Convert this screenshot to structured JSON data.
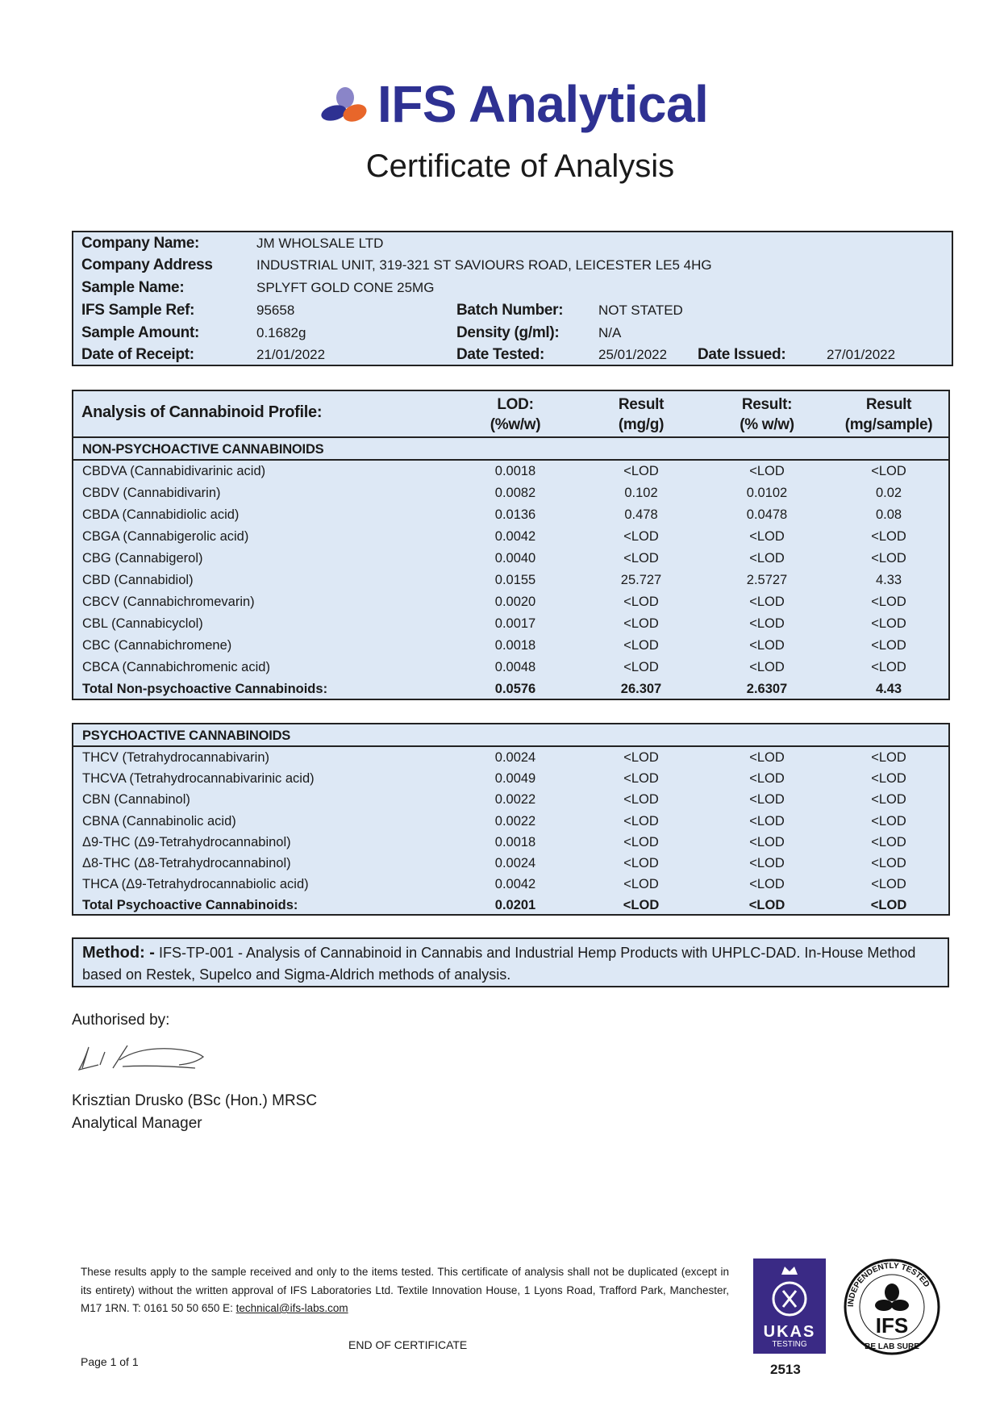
{
  "header": {
    "brand": "IFS Analytical",
    "title": "Certificate of Analysis",
    "brand_colors": {
      "blue": "#2e3192",
      "lilac": "#8a85c8",
      "orange": "#e8662a"
    }
  },
  "info": {
    "company_name_label": "Company Name:",
    "company_name": "JM WHOLSALE LTD",
    "company_address_label": "Company Address",
    "company_address": "INDUSTRIAL UNIT, 319-321 ST SAVIOURS ROAD, LEICESTER LE5 4HG",
    "sample_name_label": "Sample Name:",
    "sample_name": "SPLYFT GOLD CONE 25MG",
    "sample_ref_label": "IFS Sample Ref:",
    "sample_ref": "95658",
    "batch_label": "Batch Number:",
    "batch": "NOT STATED",
    "amount_label": "Sample Amount:",
    "amount": "0.1682g",
    "density_label": "Density (g/ml):",
    "density": "N/A",
    "receipt_label": "Date of Receipt:",
    "receipt": "21/01/2022",
    "tested_label": "Date Tested:",
    "tested": "25/01/2022",
    "issued_label": "Date Issued:",
    "issued": "27/01/2022"
  },
  "analysis": {
    "title": "Analysis of Cannabinoid Profile:",
    "columns": [
      [
        "LOD:",
        "(%w/w)"
      ],
      [
        "Result",
        "(mg/g)"
      ],
      [
        "Result:",
        "(% w/w)"
      ],
      [
        "Result",
        "(mg/sample)"
      ]
    ],
    "non_psychoactive": {
      "heading": "NON-PSYCHOACTIVE CANNABINOIDS",
      "rows": [
        [
          "CBDVA (Cannabidivarinic acid)",
          "0.0018",
          "<LOD",
          "<LOD",
          "<LOD"
        ],
        [
          "CBDV (Cannabidivarin)",
          "0.0082",
          "0.102",
          "0.0102",
          "0.02"
        ],
        [
          "CBDA (Cannabidiolic acid)",
          "0.0136",
          "0.478",
          "0.0478",
          "0.08"
        ],
        [
          "CBGA (Cannabigerolic acid)",
          "0.0042",
          "<LOD",
          "<LOD",
          "<LOD"
        ],
        [
          "CBG (Cannabigerol)",
          "0.0040",
          "<LOD",
          "<LOD",
          "<LOD"
        ],
        [
          "CBD (Cannabidiol)",
          "0.0155",
          "25.727",
          "2.5727",
          "4.33"
        ],
        [
          "CBCV (Cannabichromevarin)",
          "0.0020",
          "<LOD",
          "<LOD",
          "<LOD"
        ],
        [
          "CBL (Cannabicyclol)",
          "0.0017",
          "<LOD",
          "<LOD",
          "<LOD"
        ],
        [
          "CBC (Cannabichromene)",
          "0.0018",
          "<LOD",
          "<LOD",
          "<LOD"
        ],
        [
          "CBCA (Cannabichromenic acid)",
          "0.0048",
          "<LOD",
          "<LOD",
          "<LOD"
        ]
      ],
      "total": [
        "Total Non-psychoactive Cannabinoids:",
        "0.0576",
        "26.307",
        "2.6307",
        "4.43"
      ]
    },
    "psychoactive": {
      "heading": "PSYCHOACTIVE CANNABINOIDS",
      "rows": [
        [
          "THCV (Tetrahydrocannabivarin)",
          "0.0024",
          "<LOD",
          "<LOD",
          "<LOD"
        ],
        [
          "THCVA (Tetrahydrocannabivarinic acid)",
          "0.0049",
          "<LOD",
          "<LOD",
          "<LOD"
        ],
        [
          "CBN (Cannabinol)",
          "0.0022",
          "<LOD",
          "<LOD",
          "<LOD"
        ],
        [
          "CBNA (Cannabinolic acid)",
          "0.0022",
          "<LOD",
          "<LOD",
          "<LOD"
        ],
        [
          "Δ9-THC (Δ9-Tetrahydrocannabinol)",
          "0.0018",
          "<LOD",
          "<LOD",
          "<LOD"
        ],
        [
          "Δ8-THC (Δ8-Tetrahydrocannabinol)",
          "0.0024",
          "<LOD",
          "<LOD",
          "<LOD"
        ],
        [
          "THCA (Δ9-Tetrahydrocannabiolic acid)",
          "0.0042",
          "<LOD",
          "<LOD",
          "<LOD"
        ]
      ],
      "total": [
        "Total Psychoactive Cannabinoids:",
        "0.0201",
        "<LOD",
        "<LOD",
        "<LOD"
      ]
    }
  },
  "method": {
    "label": "Method: -",
    "text": " IFS-TP-001 - Analysis of Cannabinoid in Cannabis and Industrial Hemp Products with UHPLC-DAD. In-House Method based on Restek, Supelco and Sigma-Aldrich methods of analysis."
  },
  "signoff": {
    "authorised_by": "Authorised by:",
    "name": "Krisztian Drusko (BSc (Hon.) MRSC",
    "role": "Analytical Manager"
  },
  "footer": {
    "disclaimer": "These results apply to the sample received and only to the items tested. This certificate of analysis shall not be duplicated (except in its entirety) without the written approval of IFS Laboratories Ltd. Textile Innovation House, 1 Lyons Road, Trafford Park, Manchester, M17 1RN. T: 0161 50 50 650 E: ",
    "email": "technical@ifs-labs.com",
    "end": "END OF CERTIFICATE",
    "page": "Page 1 of 1",
    "ukas_text": "UKAS",
    "ukas_sub": "TESTING",
    "ukas_number": "2513",
    "seal_text": "INDEPENDENTLY TESTED IFS BE LAB SURE"
  }
}
